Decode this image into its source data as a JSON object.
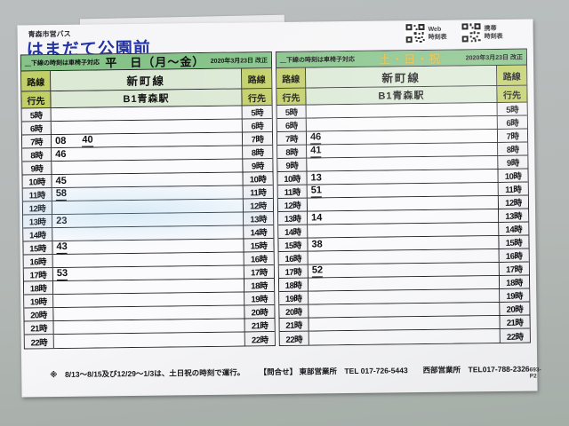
{
  "page": {
    "operator": "青森市営バス",
    "stop_name": "はまだて公園前",
    "qr_web_label": "Web\n時刻表",
    "qr_mobile_label": "携帯\n時刻表",
    "footer_note": "※　8/13～8/15及び12/29～1/3は、土日祝の時刻で運行。",
    "contact": "【問合せ】 東部営業所　TEL 017-726-5443　　西部営業所　TEL017-788-2326",
    "form_code": "693-P2"
  },
  "colors": {
    "header_bar_green": "#85c389",
    "label_cell_green": "#c2cf66",
    "wide_cell_green": "#dbe9d5",
    "stop_name_blue": "#2433a6",
    "holiday_gold": "#e0b93a"
  },
  "weekday_table": {
    "wheelchair_note": "＿下線の時刻は車椅子対応",
    "day_label": "平　日（月～金）",
    "revision": "2020年3月23日 改正",
    "route_header": "路線",
    "dest_header": "行先",
    "route_name": "新町線",
    "destination": "B1青森駅",
    "rows": [
      {
        "hour": "5時",
        "times": []
      },
      {
        "hour": "6時",
        "times": []
      },
      {
        "hour": "7時",
        "times": [
          {
            "m": "08",
            "u": false
          },
          {
            "m": "40",
            "u": true
          }
        ]
      },
      {
        "hour": "8時",
        "times": [
          {
            "m": "46",
            "u": false
          }
        ]
      },
      {
        "hour": "9時",
        "times": []
      },
      {
        "hour": "10時",
        "times": [
          {
            "m": "45",
            "u": false
          }
        ]
      },
      {
        "hour": "11時",
        "times": [
          {
            "m": "58",
            "u": true
          }
        ]
      },
      {
        "hour": "12時",
        "times": []
      },
      {
        "hour": "13時",
        "times": [
          {
            "m": "23",
            "u": false
          }
        ]
      },
      {
        "hour": "14時",
        "times": []
      },
      {
        "hour": "15時",
        "times": [
          {
            "m": "43",
            "u": true
          }
        ]
      },
      {
        "hour": "16時",
        "times": []
      },
      {
        "hour": "17時",
        "times": [
          {
            "m": "53",
            "u": true
          }
        ]
      },
      {
        "hour": "18時",
        "times": []
      },
      {
        "hour": "19時",
        "times": []
      },
      {
        "hour": "20時",
        "times": []
      },
      {
        "hour": "21時",
        "times": []
      },
      {
        "hour": "22時",
        "times": []
      }
    ]
  },
  "holiday_table": {
    "wheelchair_note": "＿下線の時刻は車椅子対応",
    "day_label": "土・日・祝",
    "revision": "2020年3月23日 改正",
    "route_header": "路線",
    "dest_header": "行先",
    "route_name": "新町線",
    "destination": "B1青森駅",
    "rows": [
      {
        "hour": "5時",
        "times": []
      },
      {
        "hour": "6時",
        "times": []
      },
      {
        "hour": "7時",
        "times": [
          {
            "m": "46",
            "u": true
          }
        ]
      },
      {
        "hour": "8時",
        "times": [
          {
            "m": "41",
            "u": true
          }
        ]
      },
      {
        "hour": "9時",
        "times": []
      },
      {
        "hour": "10時",
        "times": [
          {
            "m": "13",
            "u": false
          }
        ]
      },
      {
        "hour": "11時",
        "times": [
          {
            "m": "51",
            "u": true
          }
        ]
      },
      {
        "hour": "12時",
        "times": []
      },
      {
        "hour": "13時",
        "times": [
          {
            "m": "14",
            "u": false
          }
        ]
      },
      {
        "hour": "14時",
        "times": []
      },
      {
        "hour": "15時",
        "times": [
          {
            "m": "38",
            "u": false
          }
        ]
      },
      {
        "hour": "16時",
        "times": []
      },
      {
        "hour": "17時",
        "times": [
          {
            "m": "52",
            "u": true
          }
        ]
      },
      {
        "hour": "18時",
        "times": []
      },
      {
        "hour": "19時",
        "times": []
      },
      {
        "hour": "20時",
        "times": []
      },
      {
        "hour": "21時",
        "times": []
      },
      {
        "hour": "22時",
        "times": []
      }
    ]
  }
}
